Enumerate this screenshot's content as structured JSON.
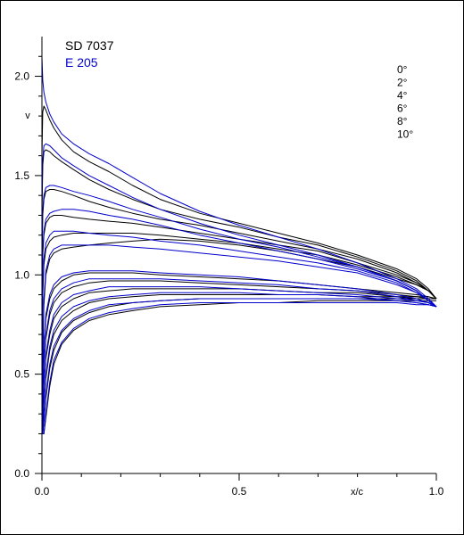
{
  "chart_data": {
    "type": "line",
    "xlabel": "x/c",
    "ylabel": "v",
    "xlim": [
      0.0,
      1.0
    ],
    "ylim": [
      0.0,
      2.2
    ],
    "x_ticks": [
      "0.0",
      "0.5",
      "1.0"
    ],
    "y_ticks": [
      "0.0",
      "0.5",
      "1.0",
      "1.5",
      "2.0"
    ],
    "x_tick_values": [
      0.0,
      0.5,
      1.0
    ],
    "y_tick_values": [
      0.0,
      0.5,
      1.0,
      1.5,
      2.0
    ],
    "x_minor_ticks": [
      0.1,
      0.2,
      0.3,
      0.4,
      0.6,
      0.7,
      0.8,
      0.9
    ],
    "y_minor_ticks": [
      0.1,
      0.2,
      0.3,
      0.4,
      0.6,
      0.7,
      0.8,
      0.9,
      1.1,
      1.2,
      1.3,
      1.4,
      1.6,
      1.7,
      1.8,
      1.9,
      2.1
    ],
    "grid": false,
    "legend": [
      {
        "name": "SD 7037",
        "color": "#000000"
      },
      {
        "name": "E 205",
        "color": "#0000cc"
      }
    ],
    "legend_placement": "top-left",
    "angles": [
      "0°",
      "2°",
      "4°",
      "6°",
      "8°",
      "10°"
    ],
    "angles_placement": "top-right",
    "x": [
      0.0,
      0.002,
      0.005,
      0.01,
      0.02,
      0.03,
      0.05,
      0.08,
      0.12,
      0.17,
      0.23,
      0.3,
      0.4,
      0.5,
      0.6,
      0.7,
      0.8,
      0.9,
      0.95,
      0.98,
      1.0
    ],
    "series": [
      {
        "airfoil": "SD 7037",
        "surface": "upper",
        "angle": "0°",
        "color": "#000000",
        "values": [
          0.25,
          0.6,
          0.85,
          1.0,
          1.08,
          1.11,
          1.13,
          1.14,
          1.15,
          1.16,
          1.17,
          1.18,
          1.17,
          1.15,
          1.12,
          1.08,
          1.04,
          0.98,
          0.95,
          0.92,
          0.88
        ]
      },
      {
        "airfoil": "SD 7037",
        "surface": "upper",
        "angle": "2°",
        "color": "#000000",
        "values": [
          0.55,
          0.9,
          1.05,
          1.13,
          1.17,
          1.19,
          1.2,
          1.21,
          1.21,
          1.21,
          1.21,
          1.2,
          1.18,
          1.16,
          1.13,
          1.1,
          1.05,
          0.99,
          0.95,
          0.92,
          0.88
        ]
      },
      {
        "airfoil": "SD 7037",
        "surface": "upper",
        "angle": "4°",
        "color": "#000000",
        "values": [
          0.8,
          1.1,
          1.2,
          1.26,
          1.29,
          1.3,
          1.3,
          1.29,
          1.28,
          1.27,
          1.26,
          1.24,
          1.21,
          1.18,
          1.15,
          1.12,
          1.06,
          1.0,
          0.96,
          0.92,
          0.88
        ]
      },
      {
        "airfoil": "SD 7037",
        "surface": "upper",
        "angle": "6°",
        "color": "#000000",
        "values": [
          1.05,
          1.3,
          1.38,
          1.42,
          1.43,
          1.43,
          1.42,
          1.4,
          1.37,
          1.34,
          1.31,
          1.28,
          1.25,
          1.21,
          1.17,
          1.13,
          1.08,
          1.01,
          0.96,
          0.92,
          0.88
        ]
      },
      {
        "airfoil": "SD 7037",
        "surface": "upper",
        "angle": "8°",
        "color": "#000000",
        "values": [
          1.3,
          1.55,
          1.62,
          1.63,
          1.62,
          1.6,
          1.57,
          1.53,
          1.48,
          1.43,
          1.38,
          1.33,
          1.28,
          1.24,
          1.19,
          1.15,
          1.09,
          1.02,
          0.97,
          0.92,
          0.88
        ]
      },
      {
        "airfoil": "SD 7037",
        "surface": "upper",
        "angle": "10°",
        "color": "#000000",
        "values": [
          1.6,
          1.82,
          1.85,
          1.83,
          1.78,
          1.74,
          1.68,
          1.62,
          1.57,
          1.52,
          1.45,
          1.38,
          1.31,
          1.26,
          1.21,
          1.16,
          1.1,
          1.03,
          0.98,
          0.93,
          0.88
        ]
      },
      {
        "airfoil": "SD 7037",
        "surface": "lower",
        "angle": "0°",
        "color": "#000000",
        "values": [
          0.22,
          0.45,
          0.65,
          0.78,
          0.88,
          0.93,
          0.97,
          1.0,
          1.01,
          1.01,
          1.01,
          1.0,
          0.99,
          0.98,
          0.97,
          0.95,
          0.93,
          0.91,
          0.9,
          0.89,
          0.88
        ]
      },
      {
        "airfoil": "SD 7037",
        "surface": "lower",
        "angle": "2°",
        "color": "#000000",
        "values": [
          0.22,
          0.38,
          0.55,
          0.68,
          0.8,
          0.86,
          0.91,
          0.94,
          0.96,
          0.97,
          0.97,
          0.97,
          0.96,
          0.95,
          0.94,
          0.93,
          0.92,
          0.9,
          0.89,
          0.89,
          0.88
        ]
      },
      {
        "airfoil": "SD 7037",
        "surface": "lower",
        "angle": "4°",
        "color": "#000000",
        "values": [
          0.22,
          0.3,
          0.45,
          0.58,
          0.7,
          0.78,
          0.84,
          0.88,
          0.91,
          0.92,
          0.93,
          0.93,
          0.93,
          0.93,
          0.92,
          0.91,
          0.91,
          0.89,
          0.89,
          0.88,
          0.88
        ]
      },
      {
        "airfoil": "SD 7037",
        "surface": "lower",
        "angle": "6°",
        "color": "#000000",
        "values": [
          0.22,
          0.22,
          0.35,
          0.48,
          0.62,
          0.7,
          0.77,
          0.82,
          0.86,
          0.88,
          0.89,
          0.9,
          0.9,
          0.9,
          0.9,
          0.9,
          0.89,
          0.89,
          0.88,
          0.88,
          0.88
        ]
      },
      {
        "airfoil": "SD 7037",
        "surface": "lower",
        "angle": "8°",
        "color": "#000000",
        "values": [
          0.22,
          0.2,
          0.26,
          0.38,
          0.53,
          0.62,
          0.71,
          0.77,
          0.81,
          0.84,
          0.86,
          0.87,
          0.88,
          0.88,
          0.88,
          0.88,
          0.88,
          0.88,
          0.88,
          0.88,
          0.88
        ]
      },
      {
        "airfoil": "SD 7037",
        "surface": "lower",
        "angle": "10°",
        "color": "#000000",
        "values": [
          0.22,
          0.2,
          0.2,
          0.28,
          0.44,
          0.55,
          0.65,
          0.72,
          0.77,
          0.8,
          0.82,
          0.84,
          0.85,
          0.86,
          0.86,
          0.87,
          0.87,
          0.87,
          0.87,
          0.87,
          0.87
        ]
      },
      {
        "airfoil": "E 205",
        "surface": "upper",
        "angle": "0°",
        "color": "#0000cc",
        "values": [
          0.25,
          0.62,
          0.88,
          1.02,
          1.1,
          1.13,
          1.15,
          1.15,
          1.15,
          1.15,
          1.14,
          1.13,
          1.11,
          1.09,
          1.07,
          1.04,
          1.01,
          0.95,
          0.91,
          0.87,
          0.84
        ]
      },
      {
        "airfoil": "E 205",
        "surface": "upper",
        "angle": "2°",
        "color": "#0000cc",
        "values": [
          0.55,
          0.92,
          1.08,
          1.16,
          1.2,
          1.22,
          1.22,
          1.22,
          1.21,
          1.2,
          1.19,
          1.17,
          1.15,
          1.12,
          1.09,
          1.06,
          1.02,
          0.96,
          0.91,
          0.87,
          0.84
        ]
      },
      {
        "airfoil": "E 205",
        "surface": "upper",
        "angle": "4°",
        "color": "#0000cc",
        "values": [
          0.8,
          1.12,
          1.22,
          1.28,
          1.31,
          1.32,
          1.33,
          1.33,
          1.32,
          1.3,
          1.28,
          1.25,
          1.2,
          1.16,
          1.12,
          1.08,
          1.03,
          0.97,
          0.92,
          0.87,
          0.84
        ]
      },
      {
        "airfoil": "E 205",
        "surface": "upper",
        "angle": "6°",
        "color": "#0000cc",
        "values": [
          1.08,
          1.33,
          1.4,
          1.44,
          1.45,
          1.45,
          1.44,
          1.42,
          1.4,
          1.37,
          1.33,
          1.29,
          1.23,
          1.18,
          1.14,
          1.09,
          1.04,
          0.97,
          0.92,
          0.87,
          0.84
        ]
      },
      {
        "airfoil": "E 205",
        "surface": "upper",
        "angle": "8°",
        "color": "#0000cc",
        "values": [
          1.35,
          1.58,
          1.65,
          1.66,
          1.65,
          1.63,
          1.59,
          1.55,
          1.5,
          1.45,
          1.39,
          1.33,
          1.26,
          1.2,
          1.15,
          1.1,
          1.04,
          0.97,
          0.92,
          0.87,
          0.84
        ]
      },
      {
        "airfoil": "E 205",
        "surface": "upper",
        "angle": "10°",
        "color": "#0000cc",
        "values": [
          2.1,
          1.98,
          1.92,
          1.87,
          1.81,
          1.77,
          1.71,
          1.66,
          1.61,
          1.56,
          1.49,
          1.41,
          1.32,
          1.25,
          1.19,
          1.13,
          1.06,
          0.98,
          0.93,
          0.88,
          0.84
        ]
      },
      {
        "airfoil": "E 205",
        "surface": "lower",
        "angle": "0°",
        "color": "#0000cc",
        "values": [
          0.22,
          0.45,
          0.66,
          0.8,
          0.9,
          0.95,
          0.99,
          1.01,
          1.02,
          1.02,
          1.02,
          1.01,
          1.0,
          0.99,
          0.97,
          0.95,
          0.93,
          0.9,
          0.88,
          0.86,
          0.84
        ]
      },
      {
        "airfoil": "E 205",
        "surface": "lower",
        "angle": "2°",
        "color": "#0000cc",
        "values": [
          0.22,
          0.38,
          0.56,
          0.7,
          0.82,
          0.88,
          0.93,
          0.96,
          0.98,
          0.98,
          0.98,
          0.98,
          0.97,
          0.96,
          0.95,
          0.93,
          0.92,
          0.89,
          0.87,
          0.86,
          0.84
        ]
      },
      {
        "airfoil": "E 205",
        "surface": "lower",
        "angle": "4°",
        "color": "#0000cc",
        "values": [
          0.22,
          0.3,
          0.46,
          0.6,
          0.72,
          0.8,
          0.86,
          0.9,
          0.92,
          0.94,
          0.94,
          0.94,
          0.94,
          0.93,
          0.92,
          0.91,
          0.9,
          0.88,
          0.87,
          0.86,
          0.84
        ]
      },
      {
        "airfoil": "E 205",
        "surface": "lower",
        "angle": "6°",
        "color": "#0000cc",
        "values": [
          0.22,
          0.22,
          0.36,
          0.5,
          0.64,
          0.72,
          0.79,
          0.84,
          0.87,
          0.89,
          0.9,
          0.91,
          0.91,
          0.91,
          0.9,
          0.9,
          0.89,
          0.87,
          0.86,
          0.85,
          0.84
        ]
      },
      {
        "airfoil": "E 205",
        "surface": "lower",
        "angle": "8°",
        "color": "#0000cc",
        "values": [
          0.22,
          0.2,
          0.27,
          0.4,
          0.55,
          0.64,
          0.72,
          0.78,
          0.82,
          0.85,
          0.86,
          0.87,
          0.88,
          0.88,
          0.88,
          0.88,
          0.88,
          0.87,
          0.86,
          0.85,
          0.84
        ]
      },
      {
        "airfoil": "E 205",
        "surface": "lower",
        "angle": "10°",
        "color": "#0000cc",
        "values": [
          0.22,
          0.2,
          0.2,
          0.3,
          0.46,
          0.57,
          0.66,
          0.73,
          0.78,
          0.81,
          0.83,
          0.85,
          0.86,
          0.86,
          0.86,
          0.86,
          0.86,
          0.86,
          0.85,
          0.85,
          0.84
        ]
      }
    ]
  }
}
